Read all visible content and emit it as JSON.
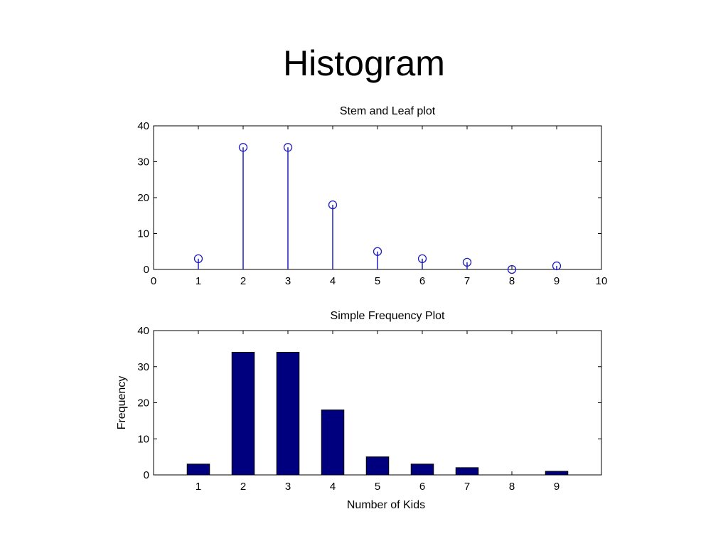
{
  "slide": {
    "title": "Histogram"
  },
  "colors": {
    "stem": "#1f1fbf",
    "bar": "#00007f",
    "bar_edge": "#000000"
  },
  "chart_data": [
    {
      "type": "stem",
      "title": "Stem and Leaf plot",
      "xlabel": "",
      "ylabel": "",
      "xlim": [
        0,
        10
      ],
      "ylim": [
        0,
        40
      ],
      "xticks": [
        0,
        1,
        2,
        3,
        4,
        5,
        6,
        7,
        8,
        9,
        10
      ],
      "yticks": [
        0,
        10,
        20,
        30,
        40
      ],
      "x": [
        1,
        2,
        3,
        4,
        5,
        6,
        7,
        8,
        9
      ],
      "y": [
        3,
        34,
        34,
        18,
        5,
        3,
        2,
        0,
        1
      ],
      "marker": "circle",
      "grid": false
    },
    {
      "type": "bar",
      "title": "Simple Frequency Plot",
      "xlabel": "Number of Kids",
      "ylabel": "Frequency",
      "xlim": [
        0,
        10
      ],
      "ylim": [
        0,
        40
      ],
      "xticks": [
        1,
        2,
        3,
        4,
        5,
        6,
        7,
        8,
        9
      ],
      "yticks": [
        0,
        10,
        20,
        30,
        40
      ],
      "categories": [
        1,
        2,
        3,
        4,
        5,
        6,
        7,
        8,
        9
      ],
      "values": [
        3,
        34,
        34,
        18,
        5,
        3,
        2,
        0,
        1
      ],
      "grid": false
    }
  ]
}
